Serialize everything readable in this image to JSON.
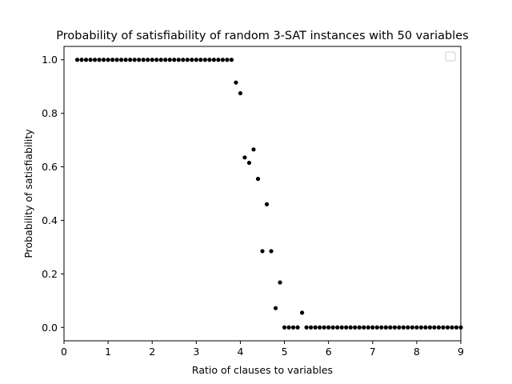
{
  "chart_data": {
    "type": "scatter",
    "title": "Probability of satisfiability of random 3-SAT instances with 50 variables",
    "xlabel": "Ratio of clauses to variables",
    "ylabel": "Probability of satisfiability",
    "xlim": [
      0,
      9
    ],
    "ylim": [
      -0.05,
      1.05
    ],
    "xticks": [
      0,
      1,
      2,
      3,
      4,
      5,
      6,
      7,
      8,
      9
    ],
    "yticks": [
      0.0,
      0.2,
      0.4,
      0.6,
      0.8,
      1.0
    ],
    "ytick_labels": [
      "0.0",
      "0.2",
      "0.4",
      "0.6",
      "0.8",
      "1.0"
    ],
    "legend": "top-right (empty)",
    "marker_color": "#000000",
    "series": [
      {
        "x": [
          0.3,
          0.4,
          0.5,
          0.6,
          0.7,
          0.8,
          0.9,
          1.0,
          1.1,
          1.2,
          1.3,
          1.4,
          1.5,
          1.6,
          1.7,
          1.8,
          1.9,
          2.0,
          2.1,
          2.2,
          2.3,
          2.4,
          2.5,
          2.6,
          2.7,
          2.8,
          2.9,
          3.0,
          3.1,
          3.2,
          3.3,
          3.4,
          3.5,
          3.6,
          3.7,
          3.8,
          3.9,
          4.0,
          4.1,
          4.2,
          4.3,
          4.4,
          4.5,
          4.6,
          4.7,
          4.8,
          4.9,
          5.0,
          5.1,
          5.2,
          5.3,
          5.4,
          5.5,
          5.6,
          5.7,
          5.8,
          5.9,
          6.0,
          6.1,
          6.2,
          6.3,
          6.4,
          6.5,
          6.6,
          6.7,
          6.8,
          6.9,
          7.0,
          7.1,
          7.2,
          7.3,
          7.4,
          7.5,
          7.6,
          7.7,
          7.8,
          7.9,
          8.0,
          8.1,
          8.2,
          8.3,
          8.4,
          8.5,
          8.6,
          8.7,
          8.8,
          8.9,
          9.0
        ],
        "y": [
          1.0,
          1.0,
          1.0,
          1.0,
          1.0,
          1.0,
          1.0,
          1.0,
          1.0,
          1.0,
          1.0,
          1.0,
          1.0,
          1.0,
          1.0,
          1.0,
          1.0,
          1.0,
          1.0,
          1.0,
          1.0,
          1.0,
          1.0,
          1.0,
          1.0,
          1.0,
          1.0,
          1.0,
          1.0,
          1.0,
          1.0,
          1.0,
          1.0,
          1.0,
          1.0,
          1.0,
          0.915,
          0.875,
          0.635,
          0.615,
          0.665,
          0.555,
          0.285,
          0.46,
          0.285,
          0.072,
          0.168,
          0.0,
          0.0,
          0.0,
          0.0,
          0.055,
          0.0,
          0.0,
          0.0,
          0.0,
          0.0,
          0.0,
          0.0,
          0.0,
          0.0,
          0.0,
          0.0,
          0.0,
          0.0,
          0.0,
          0.0,
          0.0,
          0.0,
          0.0,
          0.0,
          0.0,
          0.0,
          0.0,
          0.0,
          0.0,
          0.0,
          0.0,
          0.0,
          0.0,
          0.0,
          0.0,
          0.0,
          0.0,
          0.0,
          0.0,
          0.0,
          0.0
        ]
      }
    ]
  }
}
